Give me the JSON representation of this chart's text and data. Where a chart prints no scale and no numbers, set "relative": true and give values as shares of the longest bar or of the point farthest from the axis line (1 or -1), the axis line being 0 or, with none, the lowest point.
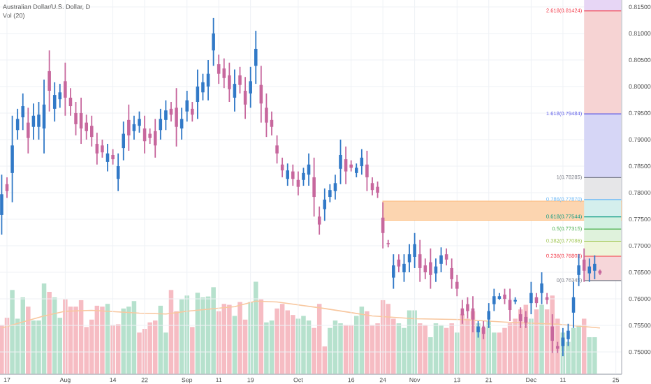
{
  "chart_data": [
    {
      "type": "candlestick",
      "title": "Australian Dollar/U.S. Dollar, D",
      "categories": [
        null,
        "17",
        null,
        null,
        null,
        null,
        null,
        null,
        null,
        null,
        null,
        null,
        "Aug",
        null,
        null,
        null,
        null,
        null,
        null,
        null,
        null,
        "14",
        null,
        null,
        null,
        null,
        null,
        "22",
        null,
        null,
        null,
        null,
        null,
        null,
        null,
        "Sep",
        null,
        null,
        null,
        null,
        null,
        "11",
        null,
        null,
        null,
        null,
        null,
        "19",
        null,
        null,
        null,
        null,
        null,
        null,
        null,
        null,
        "Oct",
        null,
        null,
        null,
        null,
        null,
        null,
        null,
        null,
        null,
        "16",
        null,
        null,
        null,
        null,
        null,
        "24",
        null,
        null,
        null,
        null,
        null,
        "Nov",
        null,
        null,
        null,
        null,
        null,
        null,
        null,
        "13",
        null,
        null,
        null,
        null,
        null,
        "21",
        null,
        null,
        null,
        null,
        null,
        null,
        null,
        "Dec",
        null,
        null,
        null,
        null,
        null,
        "11",
        null,
        null,
        null,
        null,
        null,
        null,
        null,
        null,
        null,
        "25"
      ],
      "ohlc": [
        [
          0.7758,
          0.7834,
          0.7721,
          0.7797
        ],
        [
          0.7816,
          0.7829,
          0.779,
          0.7803
        ],
        [
          0.7837,
          0.7945,
          0.7782,
          0.7889
        ],
        [
          0.7918,
          0.7958,
          0.79,
          0.7939
        ],
        [
          0.7942,
          0.7987,
          0.7918,
          0.7963
        ],
        [
          0.7932,
          0.796,
          0.7874,
          0.7903
        ],
        [
          0.7924,
          0.7968,
          0.79,
          0.7945
        ],
        [
          0.7924,
          0.7971,
          0.79,
          0.7947
        ],
        [
          0.7921,
          0.8013,
          0.7874,
          0.7966
        ],
        [
          0.8029,
          0.8068,
          0.7953,
          0.7992
        ],
        [
          0.7958,
          0.8008,
          0.7934,
          0.7984
        ],
        [
          0.7976,
          0.8005,
          0.796,
          0.7989
        ],
        [
          0.801,
          0.8045,
          0.7945,
          0.7979
        ],
        [
          0.7979,
          0.7997,
          0.7945,
          0.7963
        ],
        [
          0.795,
          0.7971,
          0.7908,
          0.7929
        ],
        [
          0.795,
          0.7979,
          0.7892,
          0.7921
        ],
        [
          0.7932,
          0.7947,
          0.79,
          0.7916
        ],
        [
          0.7926,
          0.7945,
          0.7887,
          0.7905
        ],
        [
          0.7892,
          0.7913,
          0.7853,
          0.7874
        ],
        [
          0.7889,
          0.79,
          0.7866,
          0.7876
        ],
        [
          0.7858,
          0.7892,
          0.784,
          0.7874
        ],
        [
          0.7871,
          0.7882,
          0.7853,
          0.7863
        ],
        [
          0.7826,
          0.7874,
          0.7803,
          0.785
        ],
        [
          0.7884,
          0.7934,
          0.7861,
          0.7911
        ],
        [
          0.7937,
          0.7966,
          0.7879,
          0.7908
        ],
        [
          0.7916,
          0.7945,
          0.79,
          0.7929
        ],
        [
          0.7926,
          0.7953,
          0.7913,
          0.7939
        ],
        [
          0.7921,
          0.7945,
          0.7874,
          0.7897
        ],
        [
          0.7911,
          0.7921,
          0.7892,
          0.7903
        ],
        [
          0.7916,
          0.7939,
          0.7866,
          0.7889
        ],
        [
          0.7918,
          0.7958,
          0.79,
          0.7939
        ],
        [
          0.7937,
          0.7974,
          0.7918,
          0.7955
        ],
        [
          0.7958,
          0.7971,
          0.7934,
          0.7947
        ],
        [
          0.796,
          0.7997,
          0.7887,
          0.7924
        ],
        [
          0.7921,
          0.796,
          0.79,
          0.7939
        ],
        [
          0.7953,
          0.7992,
          0.7934,
          0.7974
        ],
        [
          0.7958,
          0.7971,
          0.7934,
          0.7947
        ],
        [
          0.7971,
          0.8032,
          0.7939,
          0.8
        ],
        [
          0.7989,
          0.8024,
          0.7974,
          0.8008
        ],
        [
          0.8,
          0.805,
          0.7974,
          0.8024
        ],
        [
          0.8068,
          0.8129,
          0.8039,
          0.81
        ],
        [
          0.8042,
          0.806,
          0.8005,
          0.8024
        ],
        [
          0.8034,
          0.8053,
          0.7997,
          0.8016
        ],
        [
          0.8021,
          0.8045,
          0.7971,
          0.7995
        ],
        [
          0.7979,
          0.8032,
          0.7953,
          0.8005
        ],
        [
          0.8021,
          0.8037,
          0.7987,
          0.8003
        ],
        [
          0.7992,
          0.8018,
          0.7939,
          0.7966
        ],
        [
          0.7987,
          0.8037,
          0.796,
          0.801
        ],
        [
          0.8039,
          0.8105,
          0.8005,
          0.8071
        ],
        [
          0.8003,
          0.8039,
          0.7932,
          0.7968
        ],
        [
          0.796,
          0.7987,
          0.7905,
          0.7932
        ],
        [
          0.7937,
          0.7953,
          0.7908,
          0.7924
        ],
        [
          0.7889,
          0.7908,
          0.7855,
          0.7874
        ],
        [
          0.7853,
          0.7866,
          0.7829,
          0.7842
        ],
        [
          0.7826,
          0.7855,
          0.7813,
          0.7842
        ],
        [
          0.784,
          0.7853,
          0.7813,
          0.7826
        ],
        [
          0.7824,
          0.784,
          0.7795,
          0.7811
        ],
        [
          0.7824,
          0.7847,
          0.7813,
          0.7837
        ],
        [
          0.7834,
          0.7874,
          0.7813,
          0.7853
        ],
        [
          0.7829,
          0.7866,
          0.7755,
          0.7792
        ],
        [
          0.7755,
          0.7774,
          0.7721,
          0.774
        ],
        [
          0.7769,
          0.7808,
          0.7747,
          0.7787
        ],
        [
          0.7792,
          0.7816,
          0.7782,
          0.7805
        ],
        [
          0.7803,
          0.7834,
          0.7787,
          0.7818
        ],
        [
          0.7845,
          0.79,
          0.7816,
          0.7871
        ],
        [
          0.7863,
          0.7887,
          0.7816,
          0.784
        ],
        [
          0.7853,
          0.7861,
          0.784,
          0.7847
        ],
        [
          0.7837,
          0.7855,
          0.7829,
          0.7847
        ],
        [
          0.785,
          0.7882,
          0.7834,
          0.7866
        ],
        [
          0.7853,
          0.7879,
          0.7803,
          0.7829
        ],
        [
          0.7818,
          0.7829,
          0.7795,
          0.7805
        ],
        [
          0.7811,
          0.7821,
          0.779,
          0.78
        ],
        [
          0.7753,
          0.7782,
          0.7695,
          0.7724
        ],
        [
          0.7705,
          0.7711,
          0.7697,
          0.7703
        ],
        [
          0.764,
          0.7684,
          0.7619,
          0.7663
        ],
        [
          0.7674,
          0.7684,
          0.765,
          0.7661
        ],
        [
          0.765,
          0.7684,
          0.7632,
          0.7666
        ],
        [
          0.7669,
          0.7703,
          0.765,
          0.7684
        ],
        [
          0.7679,
          0.7724,
          0.7658,
          0.7703
        ],
        [
          0.7684,
          0.7711,
          0.7632,
          0.7658
        ],
        [
          0.7663,
          0.7676,
          0.7637,
          0.765
        ],
        [
          0.7669,
          0.7695,
          0.7619,
          0.7645
        ],
        [
          0.7648,
          0.7676,
          0.7632,
          0.7661
        ],
        [
          0.7666,
          0.7697,
          0.765,
          0.7682
        ],
        [
          0.7684,
          0.7695,
          0.7663,
          0.7674
        ],
        [
          0.7658,
          0.7676,
          0.7619,
          0.7637
        ],
        [
          0.7632,
          0.7645,
          0.7605,
          0.7619
        ],
        [
          0.7582,
          0.7598,
          0.7553,
          0.7569
        ],
        [
          0.759,
          0.7603,
          0.7563,
          0.7577
        ],
        [
          0.7582,
          0.7605,
          0.7537,
          0.7561
        ],
        [
          0.7537,
          0.7558,
          0.7527,
          0.7548
        ],
        [
          0.7548,
          0.7558,
          0.7524,
          0.7534
        ],
        [
          0.7561,
          0.7592,
          0.7545,
          0.7577
        ],
        [
          0.759,
          0.7619,
          0.7577,
          0.7605
        ],
        [
          0.76,
          0.7611,
          0.7598,
          0.7605
        ],
        [
          0.7608,
          0.7619,
          0.759,
          0.76
        ],
        [
          0.7598,
          0.7619,
          0.7558,
          0.7579
        ],
        [
          0.7595,
          0.7603,
          0.759,
          0.7598
        ],
        [
          0.7571,
          0.7584,
          0.7545,
          0.7558
        ],
        [
          0.7566,
          0.7577,
          0.7545,
          0.7555
        ],
        [
          0.7592,
          0.7632,
          0.7571,
          0.7611
        ],
        [
          0.7603,
          0.7611,
          0.7584,
          0.7592
        ],
        [
          0.7611,
          0.765,
          0.759,
          0.7629
        ],
        [
          0.7603,
          0.7611,
          0.759,
          0.7598
        ],
        [
          0.7548,
          0.7571,
          0.7498,
          0.7521
        ],
        [
          0.7511,
          0.7519,
          0.7498,
          0.7506
        ],
        [
          0.7511,
          0.7545,
          0.7492,
          0.7527
        ],
        [
          0.7524,
          0.7553,
          0.7511,
          0.754
        ],
        [
          0.7574,
          0.7632,
          0.7545,
          0.7603
        ],
        [
          0.7645,
          0.7684,
          0.7624,
          0.7663
        ],
        [
          0.7674,
          0.7695,
          0.7632,
          0.7653
        ],
        [
          0.7648,
          0.7676,
          0.7632,
          0.7661
        ],
        [
          0.7653,
          0.7682,
          0.7637,
          0.7666
        ],
        [
          0.7653,
          0.7655,
          0.7645,
          0.7648
        ],
        null,
        null,
        null
      ],
      "colors": [
        "#3179c7",
        "#c7679d",
        "#3179c7",
        "#3179c7",
        "#3179c7",
        "#c7679d",
        "#3179c7",
        "#3179c7",
        "#3179c7",
        "#c7679d",
        "#3179c7",
        "#3179c7",
        "#c7679d",
        "#c7679d",
        "#c7679d",
        "#c7679d",
        "#c7679d",
        "#c7679d",
        "#c7679d",
        "#c7679d",
        "#3179c7",
        "#c7679d",
        "#3179c7",
        "#3179c7",
        "#c7679d",
        "#3179c7",
        "#3179c7",
        "#c7679d",
        "#c7679d",
        "#c7679d",
        "#3179c7",
        "#3179c7",
        "#c7679d",
        "#c7679d",
        "#3179c7",
        "#3179c7",
        "#c7679d",
        "#3179c7",
        "#3179c7",
        "#3179c7",
        "#3179c7",
        "#c7679d",
        "#c7679d",
        "#c7679d",
        "#3179c7",
        "#c7679d",
        "#c7679d",
        "#3179c7",
        "#3179c7",
        "#c7679d",
        "#c7679d",
        "#c7679d",
        "#c7679d",
        "#c7679d",
        "#3179c7",
        "#c7679d",
        "#c7679d",
        "#3179c7",
        "#3179c7",
        "#c7679d",
        "#c7679d",
        "#3179c7",
        "#3179c7",
        "#3179c7",
        "#3179c7",
        "#c7679d",
        "#c7679d",
        "#3179c7",
        "#3179c7",
        "#c7679d",
        "#c7679d",
        "#c7679d",
        "#c7679d",
        "#c7679d",
        "#3179c7",
        "#c7679d",
        "#3179c7",
        "#3179c7",
        "#3179c7",
        "#c7679d",
        "#c7679d",
        "#c7679d",
        "#3179c7",
        "#3179c7",
        "#c7679d",
        "#c7679d",
        "#c7679d",
        "#c7679d",
        "#c7679d",
        "#c7679d",
        "#3179c7",
        "#c7679d",
        "#3179c7",
        "#3179c7",
        "#3179c7",
        "#c7679d",
        "#c7679d",
        "#3179c7",
        "#c7679d",
        "#c7679d",
        "#3179c7",
        "#c7679d",
        "#3179c7",
        "#c7679d",
        "#c7679d",
        "#c7679d",
        "#3179c7",
        "#3179c7",
        "#3179c7",
        "#3179c7",
        "#c7679d",
        "#3179c7",
        "#3179c7",
        "#c7679d",
        null,
        null,
        null
      ],
      "ylim": [
        0.7458,
        0.8163
      ],
      "yticks": [
        {
          "value": 0.75,
          "label": "0.75000"
        },
        {
          "value": 0.755,
          "label": "0.75500"
        },
        {
          "value": 0.76,
          "label": "0.76000"
        },
        {
          "value": 0.765,
          "label": "0.76500"
        },
        {
          "value": 0.77,
          "label": "0.77000"
        },
        {
          "value": 0.775,
          "label": "0.77500"
        },
        {
          "value": 0.78,
          "label": "0.78000"
        },
        {
          "value": 0.785,
          "label": "0.78500"
        },
        {
          "value": 0.79,
          "label": "0.79000"
        },
        {
          "value": 0.795,
          "label": "0.79500"
        },
        {
          "value": 0.8,
          "label": "0.80000"
        },
        {
          "value": 0.805,
          "label": "0.80500"
        },
        {
          "value": 0.81,
          "label": "0.81000"
        },
        {
          "value": 0.815,
          "label": "0.81500"
        }
      ],
      "grid": true,
      "bands": [
        {
          "axis": "y",
          "from": 0.7748,
          "to": 0.7784,
          "color": "#fcd5b0"
        },
        {
          "axis": "y",
          "from": 0.76345,
          "to": 0.76803,
          "color": "#f6d6d9"
        },
        {
          "axis": "y",
          "from": 0.76803,
          "to": 0.77086,
          "color": "#eef5d9"
        },
        {
          "axis": "y",
          "from": 0.77086,
          "to": 0.77315,
          "color": "#dff2dc"
        },
        {
          "axis": "y",
          "from": 0.77315,
          "to": 0.77544,
          "color": "#d3f0e1"
        },
        {
          "axis": "y",
          "from": 0.77544,
          "to": 0.7787,
          "color": "#d4efed"
        },
        {
          "axis": "y",
          "from": 0.7787,
          "to": 0.78285,
          "color": "#e6e6e8"
        },
        {
          "axis": "y",
          "from": 0.78285,
          "to": 0.79484,
          "color": "#d6d6f6"
        },
        {
          "axis": "y",
          "from": 0.79484,
          "to": 0.81424,
          "color": "#f6d3d3"
        },
        {
          "axis": "y",
          "from": 0.81424,
          "to": 0.8163,
          "color": "#e7d6f5"
        }
      ],
      "ref_lines": [
        {
          "axis": "y",
          "value": 0.76345,
          "label": "0(0.76345)",
          "color": "#787b86"
        },
        {
          "axis": "y",
          "value": 0.76803,
          "label": "0.236(0.76803)",
          "color": "#f23645"
        },
        {
          "axis": "y",
          "value": 0.77086,
          "label": "0.382(0.77086)",
          "color": "#9bc34a"
        },
        {
          "axis": "y",
          "value": 0.77315,
          "label": "0.5(0.77315)",
          "color": "#4caf50"
        },
        {
          "axis": "y",
          "value": 0.77544,
          "label": "0.618(0.77544)",
          "color": "#089981"
        },
        {
          "axis": "y",
          "value": 0.7787,
          "label": "0.786(0.77870)",
          "color": "#64b5f6"
        },
        {
          "axis": "y",
          "value": 0.78285,
          "label": "1(0.78285)",
          "color": "#787b86"
        },
        {
          "axis": "y",
          "value": 0.79484,
          "label": "1.618(0.79484)",
          "color": "#5b5be8"
        },
        {
          "axis": "y",
          "value": 0.81424,
          "label": "2.618(0.81424)",
          "color": "#f23645"
        }
      ]
    },
    {
      "type": "bar",
      "title": "Vol (20)",
      "relative": true,
      "categories": [
        null,
        null,
        null,
        null,
        null,
        null,
        null,
        null,
        null,
        null,
        null,
        null,
        null,
        null,
        null,
        null,
        null,
        null,
        null,
        null,
        null,
        null,
        null,
        null,
        null,
        null,
        null,
        null,
        null,
        null,
        null,
        null,
        null,
        null,
        null,
        null,
        null,
        null,
        null,
        null,
        null,
        null,
        null,
        null,
        null,
        null,
        null,
        null,
        null,
        null,
        null,
        null,
        null,
        null,
        null,
        null,
        null,
        null,
        null,
        null,
        null,
        null,
        null,
        null,
        null,
        null,
        null,
        null,
        null,
        null,
        null,
        null,
        null,
        null,
        null,
        null,
        null,
        null,
        null,
        null,
        null,
        null,
        null,
        null,
        null,
        null,
        null,
        null,
        null,
        null,
        null,
        null,
        null,
        null,
        null,
        null,
        null,
        null,
        null,
        null,
        null,
        null,
        null,
        null,
        null,
        null,
        null,
        null,
        null,
        null,
        null,
        null,
        null,
        null,
        null,
        null,
        null
      ],
      "series": [
        {
          "type": "bar",
          "values": [
            0.53,
            0.61,
            0.91,
            0.6,
            0.83,
            0.73,
            0.58,
            0.58,
            0.98,
            0.89,
            0.83,
            0.61,
            0.81,
            0.73,
            0.73,
            0.8,
            0.51,
            0.59,
            0.74,
            0.73,
            0.76,
            0.53,
            0.54,
            0.71,
            0.73,
            0.79,
            0.45,
            0.49,
            0.56,
            0.58,
            0.74,
            0.45,
            0.91,
            0.68,
            0.81,
            0.85,
            0.51,
            0.88,
            0.83,
            0.84,
            0.94,
            0.68,
            0.76,
            0.75,
            0.63,
            0.78,
            0.59,
            0.78,
            1,
            0.81,
            0.56,
            0.58,
            0.71,
            0.76,
            0.69,
            0.64,
            0.6,
            0.63,
            0.58,
            0.5,
            0.76,
            0.3,
            0.5,
            0.58,
            0.55,
            0.53,
            0.53,
            0.63,
            0.73,
            0.68,
            0.53,
            0.55,
            0.8,
            0.76,
            0.6,
            0.55,
            0.5,
            0.69,
            0.69,
            0.55,
            0.53,
            0.4,
            0.55,
            0.53,
            0.5,
            0.55,
            0.45,
            0.65,
            0.6,
            0.68,
            0.55,
            0.5,
            0.58,
            0.45,
            0.45,
            0.5,
            0.55,
            0.6,
            0.7,
            0.75,
            0.6,
            0.7,
            0.75,
            0.7,
            0.85,
            0.6,
            0.45,
            0.35,
            0.5,
            0.53,
            0.6,
            0.4,
            0.4,
            null,
            null,
            null,
            null
          ],
          "colors": [
            "#f6bcc3",
            "#f6bcc3",
            "#b6e1cd",
            "#b6e1cd",
            "#b6e1cd",
            "#f6bcc3",
            "#b6e1cd",
            "#b6e1cd",
            "#b6e1cd",
            "#f6bcc3",
            "#b6e1cd",
            "#b6e1cd",
            "#f6bcc3",
            "#f6bcc3",
            "#f6bcc3",
            "#f6bcc3",
            "#f6bcc3",
            "#f6bcc3",
            "#f6bcc3",
            "#f6bcc3",
            "#b6e1cd",
            "#f6bcc3",
            "#f6bcc3",
            "#b6e1cd",
            "#b6e1cd",
            "#b6e1cd",
            "#f6bcc3",
            "#f6bcc3",
            "#f6bcc3",
            "#f6bcc3",
            "#b6e1cd",
            "#b6e1cd",
            "#f6bcc3",
            "#f6bcc3",
            "#b6e1cd",
            "#b6e1cd",
            "#f6bcc3",
            "#b6e1cd",
            "#b6e1cd",
            "#b6e1cd",
            "#b6e1cd",
            "#f6bcc3",
            "#f6bcc3",
            "#f6bcc3",
            "#b6e1cd",
            "#f6bcc3",
            "#f6bcc3",
            "#b6e1cd",
            "#b6e1cd",
            "#f6bcc3",
            "#b6e1cd",
            "#b6e1cd",
            "#f6bcc3",
            "#f6bcc3",
            "#f6bcc3",
            "#f6bcc3",
            "#b6e1cd",
            "#b6e1cd",
            "#b6e1cd",
            "#f6bcc3",
            "#f6bcc3",
            "#f6bcc3",
            "#b6e1cd",
            "#b6e1cd",
            "#b6e1cd",
            "#f6bcc3",
            "#f6bcc3",
            "#b6e1cd",
            "#b6e1cd",
            "#f6bcc3",
            "#f6bcc3",
            "#f6bcc3",
            "#f6bcc3",
            "#f6bcc3",
            "#f6bcc3",
            "#b6e1cd",
            "#b6e1cd",
            "#b6e1cd",
            "#b6e1cd",
            "#f6bcc3",
            "#f6bcc3",
            "#b6e1cd",
            "#b6e1cd",
            "#b6e1cd",
            "#f6bcc3",
            "#f6bcc3",
            "#b6e1cd",
            "#f6bcc3",
            "#f6bcc3",
            "#f6bcc3",
            "#b6e1cd",
            "#f6bcc3",
            "#b6e1cd",
            "#b6e1cd",
            "#f6bcc3",
            "#f6bcc3",
            "#f6bcc3",
            "#f6bcc3",
            "#f6bcc3",
            "#f6bcc3",
            "#b6e1cd",
            "#f6bcc3",
            "#b6e1cd",
            "#f6bcc3",
            "#f6bcc3",
            "#f6bcc3",
            "#b6e1cd",
            "#b6e1cd",
            "#b6e1cd",
            "#b6e1cd",
            "#f6bcc3",
            "#b6e1cd",
            "#b6e1cd",
            "#f6bcc3",
            null,
            null,
            null
          ]
        },
        {
          "type": "line",
          "color": "#f8c79f",
          "values": [
            0.5,
            null,
            null,
            null,
            null,
            null,
            null,
            null,
            0.63,
            null,
            null,
            null,
            0.68,
            null,
            null,
            null,
            null,
            0.69,
            null,
            null,
            null,
            null,
            null,
            null,
            null,
            null,
            0.66,
            null,
            null,
            null,
            null,
            0.65,
            null,
            null,
            null,
            0.68,
            null,
            null,
            null,
            null,
            null,
            null,
            null,
            null,
            0.73,
            null,
            null,
            null,
            0.79,
            null,
            null,
            null,
            0.78,
            null,
            null,
            null,
            null,
            null,
            null,
            null,
            null,
            0.71,
            null,
            null,
            null,
            null,
            null,
            null,
            null,
            null,
            0.63,
            null,
            null,
            null,
            null,
            null,
            null,
            null,
            0.6,
            null,
            null,
            null,
            null,
            null,
            null,
            null,
            null,
            0.59,
            null,
            null,
            null,
            null,
            null,
            null,
            null,
            null,
            0.56,
            null,
            null,
            null,
            null,
            null,
            null,
            null,
            null,
            0.54,
            null,
            null,
            null,
            null,
            null,
            null,
            null,
            0.5,
            null,
            null,
            null
          ]
        }
      ]
    }
  ]
}
